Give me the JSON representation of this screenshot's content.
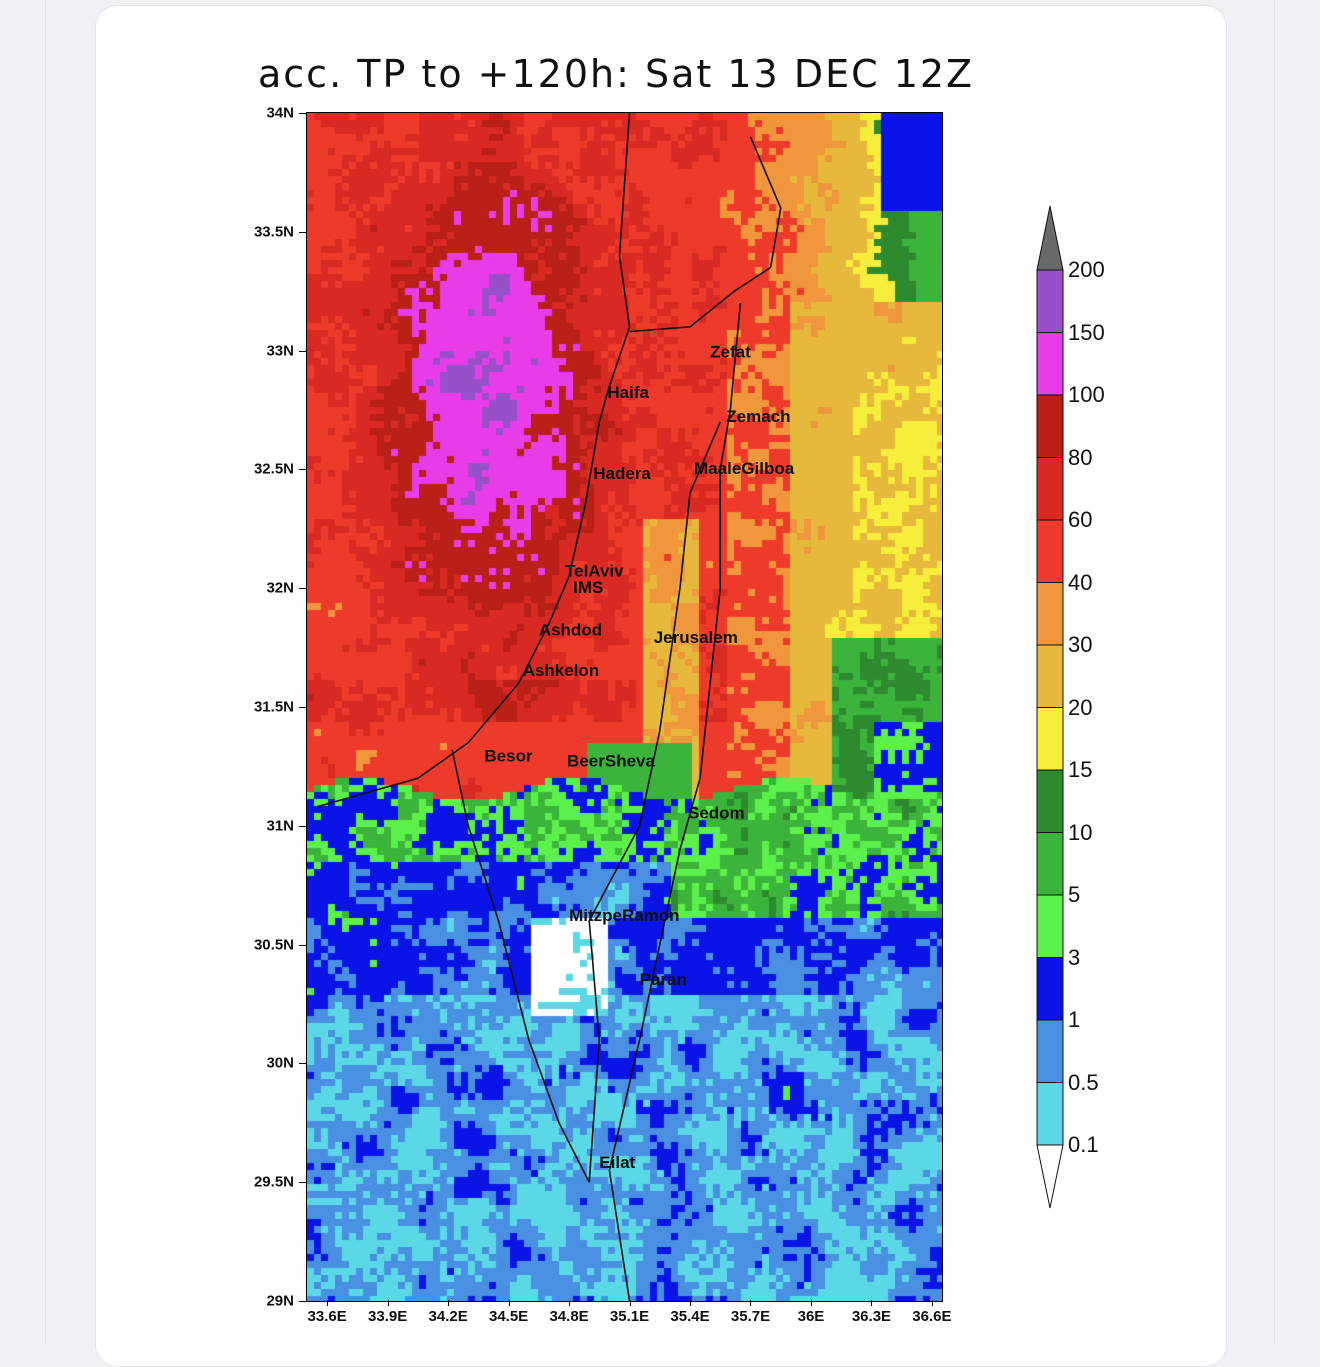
{
  "title": "acc. TP to +120h: Sat 13 DEC 12Z",
  "chart_data": {
    "type": "heatmap",
    "title": "acc. TP to +120h: Sat 13 DEC 12Z",
    "xlim": [
      33.5,
      36.65
    ],
    "ylim": [
      29,
      34
    ],
    "lat_ticks": [
      {
        "value": 34,
        "label": "34N"
      },
      {
        "value": 33.5,
        "label": "33.5N"
      },
      {
        "value": 33,
        "label": "33N"
      },
      {
        "value": 32.5,
        "label": "32.5N"
      },
      {
        "value": 32,
        "label": "32N"
      },
      {
        "value": 31.5,
        "label": "31.5N"
      },
      {
        "value": 31,
        "label": "31N"
      },
      {
        "value": 30.5,
        "label": "30.5N"
      },
      {
        "value": 30,
        "label": "30N"
      },
      {
        "value": 29.5,
        "label": "29.5N"
      },
      {
        "value": 29,
        "label": "29N"
      }
    ],
    "lon_ticks": [
      {
        "value": 33.6,
        "label": "33.6E"
      },
      {
        "value": 33.9,
        "label": "33.9E"
      },
      {
        "value": 34.2,
        "label": "34.2E"
      },
      {
        "value": 34.5,
        "label": "34.5E"
      },
      {
        "value": 34.8,
        "label": "34.8E"
      },
      {
        "value": 35.1,
        "label": "35.1E"
      },
      {
        "value": 35.4,
        "label": "35.4E"
      },
      {
        "value": 35.7,
        "label": "35.7E"
      },
      {
        "value": 36.0,
        "label": "36E"
      },
      {
        "value": 36.3,
        "label": "36.3E"
      },
      {
        "value": 36.6,
        "label": "36.6E"
      }
    ],
    "levels": [
      "0.1",
      "0.5",
      "1",
      "3",
      "5",
      "10",
      "15",
      "20",
      "30",
      "40",
      "60",
      "80",
      "100",
      "150",
      "200"
    ],
    "colors": [
      "#ffffff",
      "#5ad8e6",
      "#4a90e2",
      "#0a14e6",
      "#5cf04a",
      "#3cb43c",
      "#2e8a2e",
      "#f6ee3a",
      "#e6b83c",
      "#f0963c",
      "#ee3a2a",
      "#d82a22",
      "#b82018",
      "#e83ce8",
      "#9650c8",
      "#6a6a6a"
    ],
    "cities": [
      {
        "name": "Zefat",
        "lon": 35.5,
        "lat": 32.97
      },
      {
        "name": "Haifa",
        "lon": 34.99,
        "lat": 32.8
      },
      {
        "name": "Zemach",
        "lon": 35.58,
        "lat": 32.7
      },
      {
        "name": "Hadera",
        "lon": 34.92,
        "lat": 32.46
      },
      {
        "name": "MaaleGilboa",
        "lon": 35.42,
        "lat": 32.48
      },
      {
        "name": "TelAviv",
        "lon": 34.78,
        "lat": 32.05
      },
      {
        "name": "IMS",
        "lon": 34.82,
        "lat": 31.98
      },
      {
        "name": "Ashdod",
        "lon": 34.65,
        "lat": 31.8
      },
      {
        "name": "Jerusalem",
        "lon": 35.22,
        "lat": 31.77
      },
      {
        "name": "Ashkelon",
        "lon": 34.57,
        "lat": 31.63
      },
      {
        "name": "Besor",
        "lon": 34.38,
        "lat": 31.27
      },
      {
        "name": "BeerSheva",
        "lon": 34.79,
        "lat": 31.25
      },
      {
        "name": "Sedom",
        "lon": 35.39,
        "lat": 31.03
      },
      {
        "name": "MitzpeRamon",
        "lon": 34.8,
        "lat": 30.6
      },
      {
        "name": "Paran",
        "lon": 35.15,
        "lat": 30.33
      },
      {
        "name": "Eilat",
        "lon": 34.95,
        "lat": 29.56
      }
    ]
  }
}
